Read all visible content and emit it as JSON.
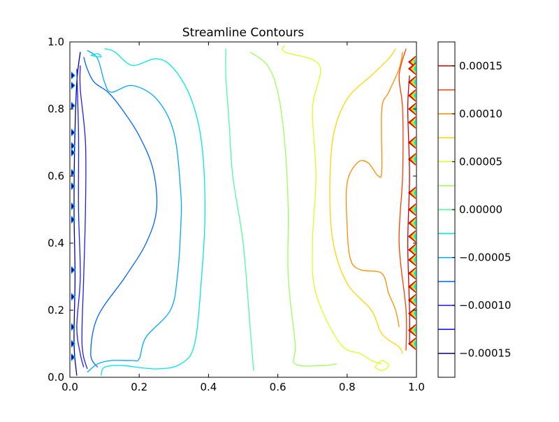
{
  "chart_data": {
    "type": "contour",
    "title": "Streamline Contours",
    "xlabel": "",
    "ylabel": "",
    "xlim": [
      0.0,
      1.0
    ],
    "ylim": [
      0.0,
      1.0
    ],
    "x_ticks": [
      0.0,
      0.2,
      0.4,
      0.6,
      0.8,
      1.0
    ],
    "y_ticks": [
      0.0,
      0.2,
      0.4,
      0.6,
      0.8,
      1.0
    ],
    "x_tick_labels": [
      "0.0",
      "0.2",
      "0.4",
      "0.6",
      "0.8",
      "1.0"
    ],
    "y_tick_labels": [
      "0.0",
      "0.2",
      "0.4",
      "0.6",
      "0.8",
      "1.0"
    ],
    "grid": false,
    "colormap": "jet",
    "colorbar": {
      "range": [
        -0.000175,
        0.000175
      ],
      "ticks": [
        -0.00015,
        -0.0001,
        -5e-05,
        0.0,
        5e-05,
        0.0001,
        0.00015
      ],
      "tick_labels": [
        "−0.00015",
        "−0.00010",
        "−0.00005",
        "0.00000",
        "0.00005",
        "0.00010",
        "0.00015"
      ]
    },
    "levels": [
      {
        "value": -0.00015,
        "color": "#0000a8"
      },
      {
        "value": -0.000125,
        "color": "#0000ff"
      },
      {
        "value": -0.0001,
        "color": "#1c1cff"
      },
      {
        "value": -7.5e-05,
        "color": "#0064ff"
      },
      {
        "value": -5e-05,
        "color": "#00a8ff"
      },
      {
        "value": -2.5e-05,
        "color": "#00e8e0"
      },
      {
        "value": 0.0,
        "color": "#4cff9c"
      },
      {
        "value": 2.5e-05,
        "color": "#9cff58"
      },
      {
        "value": 5e-05,
        "color": "#d8ff20"
      },
      {
        "value": 7.5e-05,
        "color": "#ffd400"
      },
      {
        "value": 0.0001,
        "color": "#ff8c00"
      },
      {
        "value": 0.000125,
        "color": "#ff3c00"
      },
      {
        "value": 0.00015,
        "color": "#d40000"
      }
    ],
    "contours": [
      {
        "level": -0.00015,
        "points": [
          [
            0.02,
            0.005
          ],
          [
            0.012,
            0.1
          ],
          [
            0.015,
            0.3
          ],
          [
            0.012,
            0.5
          ],
          [
            0.014,
            0.7
          ],
          [
            0.02,
            0.88
          ],
          [
            0.03,
            0.97
          ]
        ]
      },
      {
        "level": -0.0001,
        "points": [
          [
            0.05,
            0.025
          ],
          [
            0.035,
            0.1
          ],
          [
            0.04,
            0.3
          ],
          [
            0.045,
            0.5
          ],
          [
            0.045,
            0.7
          ],
          [
            0.03,
            0.86
          ],
          [
            0.03,
            0.93
          ]
        ]
      },
      {
        "level": -0.0001,
        "points": [
          [
            0.04,
            0.03
          ],
          [
            0.03,
            0.07
          ],
          [
            0.02,
            0.15
          ],
          [
            0.03,
            0.3
          ],
          [
            0.025,
            0.5
          ],
          [
            0.025,
            0.72
          ],
          [
            0.02,
            0.92
          ]
        ]
      },
      {
        "level": -7.5e-05,
        "points": [
          [
            0.08,
            0.03
          ],
          [
            0.06,
            0.07
          ],
          [
            0.08,
            0.18
          ],
          [
            0.16,
            0.3
          ],
          [
            0.22,
            0.4
          ],
          [
            0.25,
            0.5
          ],
          [
            0.24,
            0.62
          ],
          [
            0.2,
            0.72
          ],
          [
            0.15,
            0.8
          ],
          [
            0.11,
            0.85
          ],
          [
            0.07,
            0.88
          ],
          [
            0.05,
            0.92
          ],
          [
            0.04,
            0.955
          ]
        ]
      },
      {
        "level": -5e-05,
        "points": [
          [
            0.05,
            0.015
          ],
          [
            0.08,
            0.04
          ],
          [
            0.12,
            0.05
          ],
          [
            0.18,
            0.05
          ],
          [
            0.2,
            0.055
          ],
          [
            0.22,
            0.12
          ],
          [
            0.29,
            0.2
          ],
          [
            0.31,
            0.3
          ],
          [
            0.32,
            0.45
          ],
          [
            0.32,
            0.55
          ],
          [
            0.3,
            0.73
          ],
          [
            0.25,
            0.83
          ],
          [
            0.18,
            0.87
          ],
          [
            0.12,
            0.85
          ],
          [
            0.1,
            0.88
          ],
          [
            0.08,
            0.95
          ],
          [
            0.05,
            0.975
          ]
        ]
      },
      {
        "level": -2.5e-05,
        "points": [
          [
            0.09,
            0.005
          ],
          [
            0.1,
            0.03
          ],
          [
            0.15,
            0.035
          ],
          [
            0.25,
            0.025
          ],
          [
            0.32,
            0.04
          ],
          [
            0.36,
            0.1
          ],
          [
            0.38,
            0.3
          ],
          [
            0.39,
            0.5
          ],
          [
            0.38,
            0.7
          ],
          [
            0.35,
            0.83
          ],
          [
            0.3,
            0.92
          ],
          [
            0.25,
            0.95
          ],
          [
            0.18,
            0.93
          ],
          [
            0.13,
            0.97
          ],
          [
            0.1,
            0.98
          ]
        ]
      },
      {
        "level": -2.5e-05,
        "points": [
          [
            0.06,
            0.96
          ],
          [
            0.08,
            0.965
          ],
          [
            0.09,
            0.955
          ],
          [
            0.07,
            0.958
          ],
          [
            0.06,
            0.96
          ]
        ]
      },
      {
        "level": 0.0,
        "points": [
          [
            0.53,
            0.02
          ],
          [
            0.52,
            0.15
          ],
          [
            0.5,
            0.4
          ],
          [
            0.47,
            0.6
          ],
          [
            0.46,
            0.75
          ],
          [
            0.45,
            0.9
          ],
          [
            0.45,
            0.98
          ]
        ]
      },
      {
        "level": 2.5e-05,
        "points": [
          [
            0.52,
            0.97
          ],
          [
            0.57,
            0.93
          ],
          [
            0.6,
            0.85
          ],
          [
            0.62,
            0.7
          ],
          [
            0.63,
            0.5
          ],
          [
            0.63,
            0.3
          ],
          [
            0.65,
            0.1
          ],
          [
            0.65,
            0.04
          ],
          [
            0.73,
            0.035
          ],
          [
            0.77,
            0.04
          ]
        ]
      },
      {
        "level": 5e-05,
        "points": [
          [
            0.62,
            0.99
          ],
          [
            0.62,
            0.97
          ],
          [
            0.72,
            0.93
          ],
          [
            0.7,
            0.8
          ],
          [
            0.71,
            0.6
          ],
          [
            0.7,
            0.4
          ],
          [
            0.71,
            0.25
          ],
          [
            0.78,
            0.1
          ],
          [
            0.84,
            0.07
          ],
          [
            0.87,
            0.05
          ],
          [
            0.9,
            0.04
          ]
        ]
      },
      {
        "level": 5e-05,
        "points": [
          [
            0.88,
            0.03
          ],
          [
            0.9,
            0.05
          ],
          [
            0.92,
            0.035
          ],
          [
            0.9,
            0.02
          ],
          [
            0.88,
            0.03
          ]
        ]
      },
      {
        "level": 7.5e-05,
        "points": [
          [
            0.94,
            0.98
          ],
          [
            0.92,
            0.95
          ],
          [
            0.87,
            0.9
          ],
          [
            0.8,
            0.83
          ],
          [
            0.76,
            0.72
          ],
          [
            0.75,
            0.55
          ],
          [
            0.76,
            0.4
          ],
          [
            0.8,
            0.28
          ],
          [
            0.87,
            0.2
          ],
          [
            0.9,
            0.13
          ],
          [
            0.95,
            0.09
          ],
          [
            0.96,
            0.07
          ]
        ]
      },
      {
        "level": 0.0001,
        "points": [
          [
            0.96,
            0.97
          ],
          [
            0.95,
            0.92
          ],
          [
            0.92,
            0.85
          ],
          [
            0.9,
            0.8
          ],
          [
            0.9,
            0.62
          ],
          [
            0.89,
            0.6
          ],
          [
            0.86,
            0.64
          ],
          [
            0.83,
            0.64
          ],
          [
            0.8,
            0.58
          ],
          [
            0.8,
            0.45
          ],
          [
            0.81,
            0.35
          ],
          [
            0.84,
            0.32
          ],
          [
            0.9,
            0.31
          ],
          [
            0.92,
            0.25
          ],
          [
            0.94,
            0.2
          ],
          [
            0.95,
            0.15
          ]
        ]
      },
      {
        "level": 0.000125,
        "points": [
          [
            0.97,
            0.98
          ],
          [
            0.95,
            0.9
          ],
          [
            0.96,
            0.8
          ],
          [
            0.96,
            0.6
          ],
          [
            0.95,
            0.4
          ],
          [
            0.97,
            0.2
          ],
          [
            0.97,
            0.08
          ]
        ]
      },
      {
        "level": 0.00015,
        "points": [
          [
            0.98,
            0.9
          ],
          [
            0.975,
            0.8
          ],
          [
            0.98,
            0.6
          ],
          [
            0.975,
            0.4
          ],
          [
            0.98,
            0.2
          ],
          [
            0.98,
            0.1
          ]
        ]
      }
    ],
    "wall_artifacts": {
      "left_y": [
        0.9,
        0.87,
        0.81,
        0.73,
        0.69,
        0.67,
        0.61,
        0.57,
        0.51,
        0.47,
        0.32,
        0.24,
        0.15,
        0.1,
        0.06
      ],
      "right_y": [
        0.94,
        0.92,
        0.88,
        0.84,
        0.8,
        0.76,
        0.7,
        0.65,
        0.55,
        0.5,
        0.46,
        0.42,
        0.38,
        0.35,
        0.31,
        0.27,
        0.23,
        0.19,
        0.14,
        0.1
      ]
    }
  }
}
